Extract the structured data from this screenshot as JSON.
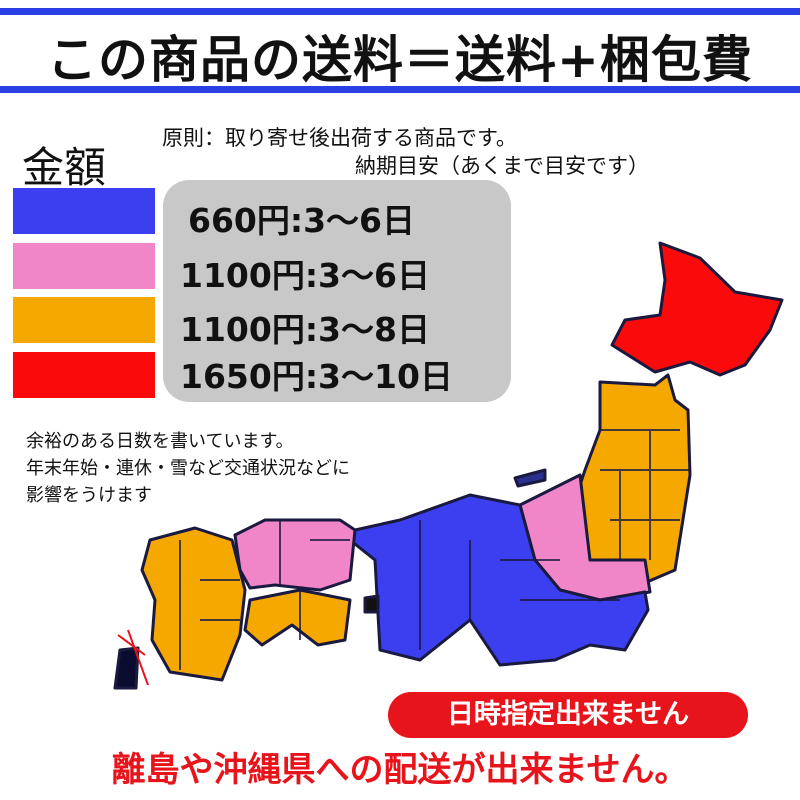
{
  "header": {
    "title": "この商品の送料＝送料+梱包費"
  },
  "legend": {
    "heading": "金額",
    "colors": {
      "blue": "#3b3ff0",
      "pink": "#f085c8",
      "orange": "#f5a800",
      "red": "#fa0a0a"
    }
  },
  "principle": {
    "line1": "原則：取り寄せ後出荷する商品です。",
    "line2": "納期目安（あくまで目安です）"
  },
  "rates": [
    {
      "text": "660円:3〜6日",
      "color": "blue"
    },
    {
      "text": "1100円:3〜6日",
      "color": "pink"
    },
    {
      "text": "1100円:3〜8日",
      "color": "orange"
    },
    {
      "text": "1650円:3〜10日",
      "color": "red"
    }
  ],
  "notes": [
    "余裕のある日数を書いています。",
    "年末年始・連休・雪など交通状況などに",
    "影響をうけます"
  ],
  "badge": "日時指定出来ません",
  "footer": "離島や沖縄県への配送が出来ません。"
}
